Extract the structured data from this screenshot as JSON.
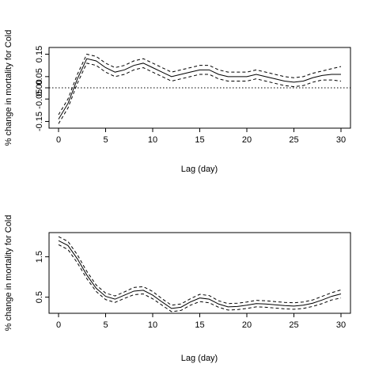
{
  "chart_data": [
    {
      "type": "line",
      "xlabel": "Lag (day)",
      "ylabel": "% change in mortality for Cold",
      "xlim": [
        0,
        30
      ],
      "ylim": [
        -0.18,
        0.18
      ],
      "xticks": [
        0,
        5,
        10,
        15,
        20,
        25,
        30
      ],
      "yticks": [
        -0.15,
        -0.05,
        0.0,
        0.05,
        0.15
      ],
      "ytick_labels": [
        "-0.15",
        "-0.05",
        "0.00",
        "0.05",
        "0.15"
      ],
      "reference_line": {
        "y": 0,
        "style": "dotted"
      },
      "x": [
        0,
        1,
        2,
        3,
        4,
        5,
        6,
        7,
        8,
        9,
        10,
        11,
        12,
        13,
        14,
        15,
        16,
        17,
        18,
        19,
        20,
        21,
        22,
        23,
        24,
        25,
        26,
        27,
        28,
        29,
        30
      ],
      "series": [
        {
          "role": "estimate",
          "style": "solid",
          "values": [
            -0.14,
            -0.07,
            0.04,
            0.13,
            0.12,
            0.09,
            0.07,
            0.08,
            0.1,
            0.11,
            0.09,
            0.07,
            0.05,
            0.06,
            0.07,
            0.08,
            0.08,
            0.06,
            0.05,
            0.05,
            0.05,
            0.06,
            0.05,
            0.04,
            0.03,
            0.025,
            0.03,
            0.045,
            0.055,
            0.06,
            0.06
          ]
        },
        {
          "role": "upper-ci",
          "style": "dashed",
          "values": [
            -0.12,
            -0.05,
            0.06,
            0.15,
            0.14,
            0.11,
            0.09,
            0.1,
            0.12,
            0.13,
            0.11,
            0.09,
            0.07,
            0.08,
            0.09,
            0.1,
            0.1,
            0.08,
            0.07,
            0.07,
            0.07,
            0.08,
            0.07,
            0.06,
            0.05,
            0.045,
            0.05,
            0.065,
            0.075,
            0.085,
            0.095
          ]
        },
        {
          "role": "lower-ci",
          "style": "dashed",
          "values": [
            -0.16,
            -0.09,
            0.02,
            0.11,
            0.1,
            0.07,
            0.05,
            0.06,
            0.08,
            0.09,
            0.07,
            0.05,
            0.03,
            0.04,
            0.05,
            0.06,
            0.06,
            0.04,
            0.03,
            0.03,
            0.03,
            0.04,
            0.03,
            0.02,
            0.01,
            0.005,
            0.01,
            0.025,
            0.035,
            0.035,
            0.03
          ]
        }
      ]
    },
    {
      "type": "line",
      "xlabel": "Lag (day)",
      "ylabel": "% change in mortality for Cold",
      "xlim": [
        0,
        30
      ],
      "ylim": [
        0.1,
        2.1
      ],
      "xticks": [
        0,
        5,
        10,
        15,
        20,
        25,
        30
      ],
      "yticks": [
        0.5,
        1.5
      ],
      "ytick_labels": [
        "0.5",
        "1.5"
      ],
      "x": [
        0,
        1,
        2,
        3,
        4,
        5,
        6,
        7,
        8,
        9,
        10,
        11,
        12,
        13,
        14,
        15,
        16,
        17,
        18,
        19,
        20,
        21,
        22,
        23,
        24,
        25,
        26,
        27,
        28,
        29,
        30
      ],
      "series": [
        {
          "role": "estimate",
          "style": "solid",
          "values": [
            1.9,
            1.78,
            1.45,
            1.05,
            0.72,
            0.52,
            0.45,
            0.55,
            0.65,
            0.67,
            0.55,
            0.38,
            0.22,
            0.25,
            0.38,
            0.48,
            0.45,
            0.33,
            0.26,
            0.27,
            0.3,
            0.34,
            0.33,
            0.31,
            0.29,
            0.28,
            0.3,
            0.35,
            0.43,
            0.52,
            0.58
          ]
        },
        {
          "role": "upper-ci",
          "style": "dashed",
          "values": [
            2.0,
            1.88,
            1.55,
            1.14,
            0.8,
            0.6,
            0.53,
            0.63,
            0.74,
            0.76,
            0.64,
            0.46,
            0.3,
            0.33,
            0.46,
            0.57,
            0.54,
            0.41,
            0.34,
            0.35,
            0.38,
            0.42,
            0.41,
            0.39,
            0.37,
            0.36,
            0.38,
            0.43,
            0.52,
            0.61,
            0.68
          ]
        },
        {
          "role": "lower-ci",
          "style": "dashed",
          "values": [
            1.8,
            1.68,
            1.35,
            0.96,
            0.64,
            0.44,
            0.37,
            0.47,
            0.56,
            0.58,
            0.46,
            0.3,
            0.14,
            0.17,
            0.3,
            0.39,
            0.36,
            0.25,
            0.18,
            0.19,
            0.22,
            0.26,
            0.25,
            0.23,
            0.21,
            0.2,
            0.22,
            0.27,
            0.34,
            0.43,
            0.48
          ]
        }
      ]
    }
  ]
}
